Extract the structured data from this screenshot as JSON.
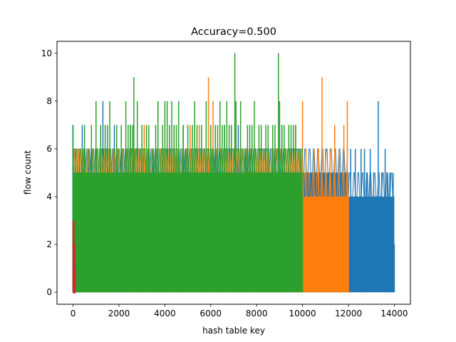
{
  "chart_data": {
    "type": "line",
    "title": "Accuracy=0.500",
    "xlabel": "hash table key",
    "ylabel": "flow count",
    "xlim": [
      -700,
      14700
    ],
    "ylim": [
      -0.5,
      10.5
    ],
    "xticks": [
      0,
      2000,
      4000,
      6000,
      8000,
      10000,
      12000,
      14000
    ],
    "xtick_labels": [
      "0",
      "2000",
      "4000",
      "6000",
      "8000",
      "10000",
      "12000",
      "14000"
    ],
    "yticks": [
      0,
      2,
      4,
      6,
      8,
      10
    ],
    "ytick_labels": [
      "0",
      "2",
      "4",
      "6",
      "8",
      "10"
    ],
    "grid": false,
    "legend": false,
    "series": [
      {
        "color": "#1f77b4",
        "x_range": [
          0,
          14000
        ],
        "band_segments": [
          [
            0,
            12000,
            5
          ],
          [
            12000,
            12900,
            4
          ],
          [
            12900,
            14000,
            4
          ]
        ],
        "peaks": [
          [
            -10,
            7
          ],
          [
            400,
            7
          ],
          [
            700,
            6
          ],
          [
            1300,
            8
          ],
          [
            1800,
            7
          ],
          [
            2500,
            7
          ],
          [
            3700,
            8
          ],
          [
            4800,
            7
          ],
          [
            6600,
            7
          ],
          [
            7200,
            7
          ],
          [
            9100,
            7
          ],
          [
            12100,
            6
          ],
          [
            12300,
            6
          ],
          [
            12550,
            6
          ],
          [
            12700,
            6
          ],
          [
            12800,
            5
          ],
          [
            12950,
            6
          ],
          [
            13100,
            5
          ],
          [
            13300,
            8
          ],
          [
            13450,
            5
          ],
          [
            13600,
            6
          ],
          [
            13700,
            5
          ],
          [
            13800,
            5
          ],
          [
            13950,
            5
          ],
          [
            14000,
            2
          ]
        ]
      },
      {
        "color": "#ff7f0e",
        "x_range": [
          0,
          12000
        ],
        "band_segments": [
          [
            0,
            10000,
            5
          ],
          [
            10000,
            12000,
            4
          ]
        ],
        "peaks": [
          [
            200,
            6
          ],
          [
            2400,
            6
          ],
          [
            3100,
            7
          ],
          [
            5100,
            7
          ],
          [
            5500,
            7
          ],
          [
            5900,
            9
          ],
          [
            6100,
            8
          ],
          [
            7100,
            7
          ],
          [
            7600,
            6
          ],
          [
            8200,
            6
          ],
          [
            9700,
            7
          ],
          [
            10000,
            8
          ],
          [
            10150,
            6
          ],
          [
            10500,
            6
          ],
          [
            10700,
            6
          ],
          [
            10850,
            9
          ],
          [
            11000,
            6
          ],
          [
            11200,
            6
          ],
          [
            11400,
            7
          ],
          [
            11600,
            6
          ],
          [
            11800,
            7
          ],
          [
            11950,
            8
          ],
          [
            12000,
            4
          ]
        ]
      },
      {
        "color": "#2ca02c",
        "x_range": [
          0,
          10000
        ],
        "band_segments": [
          [
            0,
            10000,
            5
          ]
        ],
        "peaks": [
          [
            0,
            7
          ],
          [
            400,
            6
          ],
          [
            500,
            7
          ],
          [
            800,
            7
          ],
          [
            1000,
            8
          ],
          [
            1200,
            7
          ],
          [
            1400,
            7
          ],
          [
            1500,
            7
          ],
          [
            1600,
            8
          ],
          [
            1900,
            7
          ],
          [
            2100,
            7
          ],
          [
            2300,
            8
          ],
          [
            2400,
            7
          ],
          [
            2500,
            7
          ],
          [
            2600,
            7
          ],
          [
            2650,
            9
          ],
          [
            2800,
            8
          ],
          [
            3000,
            7
          ],
          [
            3200,
            7
          ],
          [
            3300,
            7
          ],
          [
            3500,
            6
          ],
          [
            3600,
            7
          ],
          [
            3700,
            8
          ],
          [
            3900,
            7
          ],
          [
            4000,
            8
          ],
          [
            4100,
            8
          ],
          [
            4200,
            7
          ],
          [
            4300,
            8
          ],
          [
            4400,
            7
          ],
          [
            4500,
            7
          ],
          [
            4600,
            8
          ],
          [
            4800,
            7
          ],
          [
            4900,
            6
          ],
          [
            5000,
            7
          ],
          [
            5200,
            7
          ],
          [
            5300,
            8
          ],
          [
            5400,
            7
          ],
          [
            5600,
            7
          ],
          [
            5800,
            8
          ],
          [
            6000,
            7
          ],
          [
            6100,
            6
          ],
          [
            6200,
            7
          ],
          [
            6300,
            7
          ],
          [
            6400,
            8
          ],
          [
            6500,
            7
          ],
          [
            6600,
            7
          ],
          [
            6700,
            8
          ],
          [
            6800,
            7
          ],
          [
            6900,
            7
          ],
          [
            7050,
            10
          ],
          [
            7100,
            8
          ],
          [
            7300,
            8
          ],
          [
            7500,
            6
          ],
          [
            7600,
            7
          ],
          [
            7700,
            7
          ],
          [
            7800,
            7
          ],
          [
            7900,
            8
          ],
          [
            8100,
            7
          ],
          [
            8200,
            7
          ],
          [
            8400,
            7
          ],
          [
            8500,
            7
          ],
          [
            8700,
            7
          ],
          [
            8800,
            7
          ],
          [
            8950,
            10
          ],
          [
            9000,
            8
          ],
          [
            9100,
            7
          ],
          [
            9200,
            7
          ],
          [
            9400,
            7
          ],
          [
            9500,
            7
          ],
          [
            9600,
            7
          ],
          [
            9700,
            7
          ],
          [
            9900,
            6
          ],
          [
            10000,
            4
          ]
        ]
      },
      {
        "color": "#d62728",
        "x_range": [
          0,
          110
        ],
        "band_segments": [
          [
            0,
            110,
            0
          ]
        ],
        "peaks": [
          [
            0,
            3
          ],
          [
            20,
            2
          ],
          [
            40,
            3
          ],
          [
            60,
            2
          ],
          [
            80,
            2
          ],
          [
            100,
            1
          ]
        ]
      }
    ]
  }
}
